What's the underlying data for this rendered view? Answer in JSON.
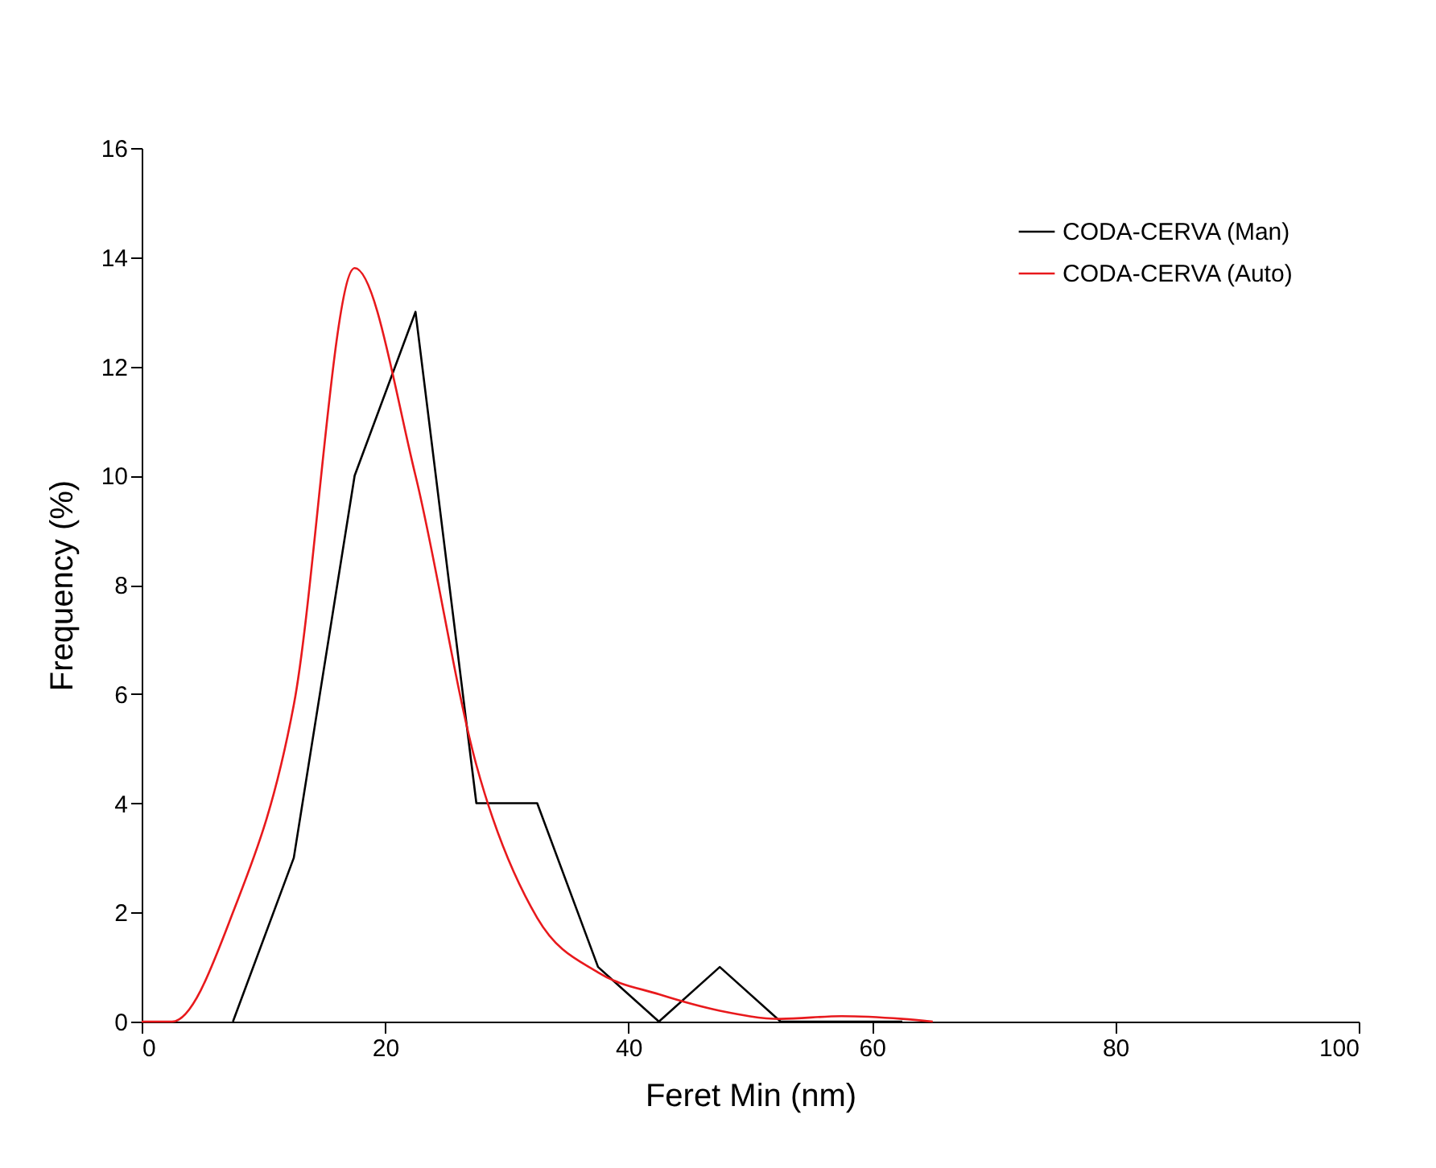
{
  "chart_data": {
    "type": "line",
    "xlabel": "Feret Min (nm)",
    "ylabel": "Frequency (%)",
    "xlim": [
      0,
      100
    ],
    "xticks": [
      0,
      20,
      40,
      60,
      80,
      100
    ],
    "ylim": [
      0,
      16
    ],
    "yticks": [
      0,
      2,
      4,
      6,
      8,
      10,
      12,
      14,
      16
    ],
    "grid": false,
    "legend": "top right",
    "marker": "none",
    "series": [
      {
        "name": "CODA-CERVA (Man)",
        "color": "#000000",
        "x": [
          7.5,
          12.5,
          17.5,
          22.5,
          27.5,
          32.5,
          37.5,
          42.5,
          47.5,
          52.5,
          57.5,
          62.5
        ],
        "values": [
          0,
          3,
          10,
          13,
          4,
          4,
          1,
          0,
          1,
          0,
          0,
          0
        ],
        "line_style": "solid"
      },
      {
        "name": "CODA-CERVA (Auto)",
        "color": "#e8191c",
        "x": [
          0,
          2.5,
          7.5,
          12.5,
          17.5,
          22.5,
          27.5,
          32.5,
          37.5,
          42.5,
          47.5,
          52.5,
          57.5,
          62.5,
          65
        ],
        "values": [
          0,
          0,
          2,
          5.8,
          13.8,
          10,
          4.7,
          1.9,
          0.9,
          0.5,
          0.2,
          0.05,
          0.1,
          0.05,
          0
        ],
        "line_style": "solid"
      }
    ]
  }
}
